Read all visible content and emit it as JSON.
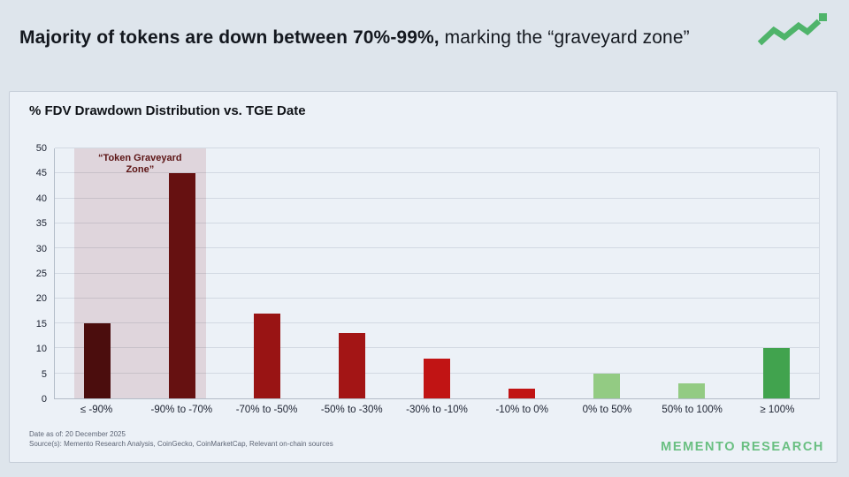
{
  "header": {
    "title_bold": "Majority of tokens are down between 70%-99%,",
    "title_regular": " marking the “graveyard zone”"
  },
  "logo": {
    "icon": "zigzag-trendline-with-square",
    "color": "#4fb46a"
  },
  "chart_data": {
    "type": "bar",
    "title": "% FDV Drawdown Distribution vs. TGE Date",
    "categories": [
      "≤ -90%",
      "-90% to -70%",
      "-70% to -50%",
      "-50% to -30%",
      "-30% to -10%",
      "-10% to 0%",
      "0% to 50%",
      "50% to 100%",
      "≥ 100%"
    ],
    "values": [
      15,
      45,
      17,
      13,
      8,
      2,
      5,
      3,
      10
    ],
    "bar_colors": [
      "#4b0d0d",
      "#661111",
      "#991414",
      "#a31515",
      "#c11414",
      "#c11414",
      "#93cb83",
      "#93cb83",
      "#41a34e"
    ],
    "xlabel": "",
    "ylabel": "",
    "ylim": [
      0,
      50
    ],
    "ytick_step": 5,
    "grid": true,
    "legend": "none",
    "annotation": {
      "text": "“Token Graveyard Zone”",
      "text_color": "#5c1414",
      "zone_categories": [
        "≤ -90%",
        "-90% to -70%"
      ],
      "zone_fill": "rgba(140,30,40,0.13)"
    }
  },
  "footer": {
    "date_line": "Date as of: 20 December 2025",
    "source_line": "Source(s): Memento Research Analysis, CoinGecko, CoinMarketCap, Relevant on-chain sources",
    "brand": "MEMENTO RESEARCH",
    "brand_color": "#69bf81"
  }
}
